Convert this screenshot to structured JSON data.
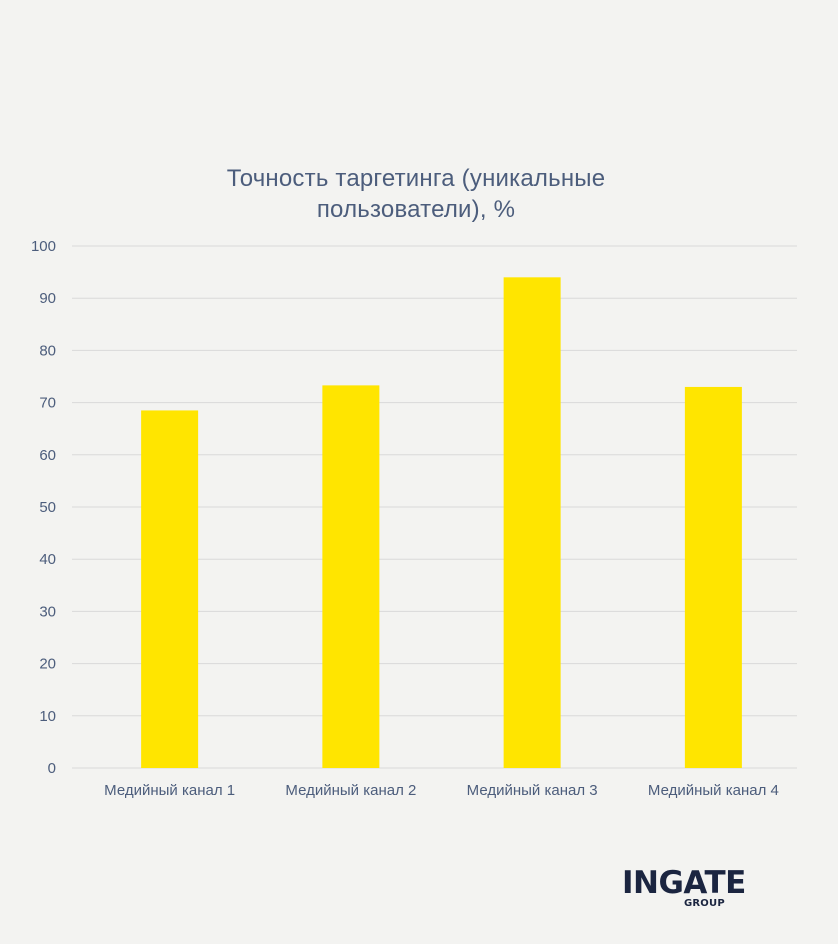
{
  "chart_data": {
    "type": "bar",
    "title": "Точность таргетинга (уникальные пользователи), %",
    "title_lines": [
      "Точность таргетинга (уникальные",
      "пользователи), %"
    ],
    "categories": [
      "Медийный канал 1",
      "Медийный канал 2",
      "Медийный канал 3",
      "Медийный канал 4"
    ],
    "values": [
      68.5,
      73.3,
      94,
      73
    ],
    "ylim": [
      0,
      100
    ],
    "yticks": [
      "0",
      "10",
      "20",
      "30",
      "40",
      "50",
      "60",
      "70",
      "80",
      "90",
      "100"
    ],
    "grid": true,
    "legend": "none",
    "bar_color": "#ffe500",
    "grid_color": "#d9d9d9",
    "text_color": "#4c5d7c"
  },
  "logo": {
    "main": "INGATE",
    "sub": "GROUP",
    "color": "#1b2540"
  }
}
